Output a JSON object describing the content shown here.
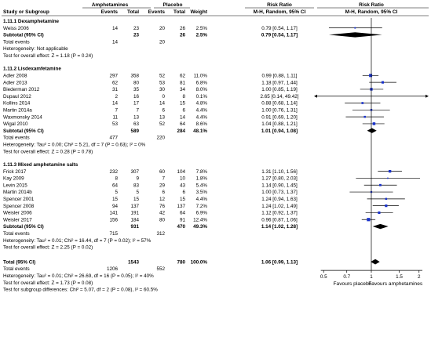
{
  "chart_data": {
    "type": "forest",
    "columns": {
      "group1_title": "Amphetamines",
      "group2_title": "Placebo",
      "effect_title": "Risk Ratio",
      "study": "Study or Subgroup",
      "events1": "Events",
      "total1": "Total",
      "events2": "Events",
      "total2": "Total",
      "weight": "Weight",
      "ci_text": "M-H, Random, 95% CI",
      "plot": "M-H, Random, 95% CI"
    },
    "subgroups": [
      {
        "title": "1.11.1 Dexamphetamine",
        "studies": [
          {
            "name": "Weiss 2006",
            "e1": "14",
            "t1": "23",
            "e2": "20",
            "t2": "26",
            "weight": "2.5%",
            "ci_text": "0.79 [0.54, 1.17]",
            "rr": 0.79,
            "lo": 0.54,
            "hi": 1.17,
            "w": 2.5
          }
        ],
        "subtotal": {
          "label": "Subtotal (95% CI)",
          "t1": "23",
          "t2": "26",
          "weight": "2.5%",
          "ci_text": "0.79 [0.54, 1.17]",
          "rr": 0.79,
          "lo": 0.54,
          "hi": 1.17
        },
        "total_events": {
          "label": "Total events",
          "e1": "14",
          "e2": "20"
        },
        "heterogeneity": "Heterogeneity: Not applicable",
        "overall_test": "Test for overall effect: Z = 1.18 (P = 0.24)"
      },
      {
        "title": "1.11.2 Lisdexamfetamine",
        "studies": [
          {
            "name": "Adler 2008",
            "e1": "297",
            "t1": "358",
            "e2": "52",
            "t2": "62",
            "weight": "11.0%",
            "ci_text": "0.99 [0.88, 1.11]",
            "rr": 0.99,
            "lo": 0.88,
            "hi": 1.11,
            "w": 11.0
          },
          {
            "name": "Adler 2013",
            "e1": "62",
            "t1": "80",
            "e2": "53",
            "t2": "81",
            "weight": "6.8%",
            "ci_text": "1.18 [0.97, 1.44]",
            "rr": 1.18,
            "lo": 0.97,
            "hi": 1.44,
            "w": 6.8
          },
          {
            "name": "Biederman 2012",
            "e1": "31",
            "t1": "35",
            "e2": "30",
            "t2": "34",
            "weight": "8.0%",
            "ci_text": "1.00 [0.85, 1.19]",
            "rr": 1.0,
            "lo": 0.85,
            "hi": 1.19,
            "w": 8.0
          },
          {
            "name": "Dupaul 2012",
            "e1": "2",
            "t1": "16",
            "e2": "0",
            "t2": "8",
            "weight": "0.1%",
            "ci_text": "2.65 [0.14, 49.42]",
            "rr": 2.65,
            "lo": 0.14,
            "hi": 49.42,
            "w": 0.1
          },
          {
            "name": "Kollins 2014",
            "e1": "14",
            "t1": "17",
            "e2": "14",
            "t2": "15",
            "weight": "4.8%",
            "ci_text": "0.88 [0.68, 1.14]",
            "rr": 0.88,
            "lo": 0.68,
            "hi": 1.14,
            "w": 4.8
          },
          {
            "name": "Martin 2014a",
            "e1": "7",
            "t1": "7",
            "e2": "6",
            "t2": "6",
            "weight": "4.4%",
            "ci_text": "1.00 [0.76, 1.31]",
            "rr": 1.0,
            "lo": 0.76,
            "hi": 1.31,
            "w": 4.4
          },
          {
            "name": "Waxmonsky 2014",
            "e1": "11",
            "t1": "13",
            "e2": "13",
            "t2": "14",
            "weight": "4.4%",
            "ci_text": "0.91 [0.69, 1.20]",
            "rr": 0.91,
            "lo": 0.69,
            "hi": 1.2,
            "w": 4.4
          },
          {
            "name": "Wigal 2010",
            "e1": "53",
            "t1": "63",
            "e2": "52",
            "t2": "64",
            "weight": "8.6%",
            "ci_text": "1.04 [0.88, 1.21]",
            "rr": 1.04,
            "lo": 0.88,
            "hi": 1.21,
            "w": 8.6
          }
        ],
        "subtotal": {
          "label": "Subtotal (95% CI)",
          "t1": "589",
          "t2": "284",
          "weight": "48.1%",
          "ci_text": "1.01 [0.94, 1.08]",
          "rr": 1.01,
          "lo": 0.94,
          "hi": 1.08
        },
        "total_events": {
          "label": "Total events",
          "e1": "477",
          "e2": "220"
        },
        "heterogeneity": "Heterogeneity: Tau² = 0.00; Chi² = 5.21, df = 7 (P = 0.63); I² = 0%",
        "overall_test": "Test for overall effect: Z = 0.28 (P = 0.78)"
      },
      {
        "title": "1.11.3 Mixed amphetamine salts",
        "studies": [
          {
            "name": "Frick 2017",
            "e1": "232",
            "t1": "307",
            "e2": "60",
            "t2": "104",
            "weight": "7.8%",
            "ci_text": "1.31 [1.10, 1.56]",
            "rr": 1.31,
            "lo": 1.1,
            "hi": 1.56,
            "w": 7.8
          },
          {
            "name": "Kay 2009",
            "e1": "8",
            "t1": "9",
            "e2": "7",
            "t2": "10",
            "weight": "1.8%",
            "ci_text": "1.27 [0.80, 2.03]",
            "rr": 1.27,
            "lo": 0.8,
            "hi": 2.03,
            "w": 1.8
          },
          {
            "name": "Levin 2015",
            "e1": "64",
            "t1": "83",
            "e2": "29",
            "t2": "43",
            "weight": "5.4%",
            "ci_text": "1.14 [0.90, 1.45]",
            "rr": 1.14,
            "lo": 0.9,
            "hi": 1.45,
            "w": 5.4
          },
          {
            "name": "Martin 2014b",
            "e1": "5",
            "t1": "5",
            "e2": "6",
            "t2": "6",
            "weight": "3.5%",
            "ci_text": "1.00 [0.73, 1.37]",
            "rr": 1.0,
            "lo": 0.73,
            "hi": 1.37,
            "w": 3.5
          },
          {
            "name": "Spencer 2001",
            "e1": "15",
            "t1": "15",
            "e2": "12",
            "t2": "15",
            "weight": "4.4%",
            "ci_text": "1.24 [0.94, 1.63]",
            "rr": 1.24,
            "lo": 0.94,
            "hi": 1.63,
            "w": 4.4
          },
          {
            "name": "Spencer 2008",
            "e1": "94",
            "t1": "137",
            "e2": "76",
            "t2": "137",
            "weight": "7.2%",
            "ci_text": "1.24 [1.02, 1.49]",
            "rr": 1.24,
            "lo": 1.02,
            "hi": 1.49,
            "w": 7.2
          },
          {
            "name": "Weisler 2006",
            "e1": "141",
            "t1": "191",
            "e2": "42",
            "t2": "64",
            "weight": "6.9%",
            "ci_text": "1.12 [0.92, 1.37]",
            "rr": 1.12,
            "lo": 0.92,
            "hi": 1.37,
            "w": 6.9
          },
          {
            "name": "Weisler 2017",
            "e1": "156",
            "t1": "184",
            "e2": "80",
            "t2": "91",
            "weight": "12.4%",
            "ci_text": "0.96 [0.87, 1.06]",
            "rr": 0.96,
            "lo": 0.87,
            "hi": 1.06,
            "w": 12.4
          }
        ],
        "subtotal": {
          "label": "Subtotal (95% CI)",
          "t1": "931",
          "t2": "470",
          "weight": "49.3%",
          "ci_text": "1.14 [1.02, 1.28]",
          "rr": 1.14,
          "lo": 1.02,
          "hi": 1.28
        },
        "total_events": {
          "label": "Total events",
          "e1": "715",
          "e2": "312"
        },
        "heterogeneity": "Heterogeneity: Tau² = 0.01; Chi² = 16.44, df = 7 (P = 0.02); I² = 57%",
        "overall_test": "Test for overall effect: Z = 2.25 (P = 0.02)"
      }
    ],
    "overall": {
      "label": "Total (95% CI)",
      "t1": "1543",
      "t2": "780",
      "weight": "100.0%",
      "ci_text": "1.06 [0.99, 1.13]",
      "rr": 1.06,
      "lo": 0.99,
      "hi": 1.13,
      "total_events": {
        "label": "Total events",
        "e1": "1206",
        "e2": "552"
      },
      "heterogeneity": "Heterogeneity: Tau² = 0.01; Chi² = 26.69, df = 16 (P = 0.05); I² = 40%",
      "overall_test": "Test for overall effect: Z = 1.73 (P = 0.08)",
      "subgroup_test": "Test for subgroup differences: Chi² = 5.07, df = 2 (P = 0.08), I² = 60.5%"
    },
    "x_axis": {
      "scale": "log",
      "range": [
        0.435,
        2.3
      ],
      "ticks": [
        0.5,
        0.7,
        1,
        1.5,
        2
      ],
      "tick_labels": [
        "0.5",
        "0.7",
        "1",
        "1.5",
        "2"
      ],
      "left_label": "Favours placebo",
      "right_label": "Favours amphetamines"
    },
    "colors": {
      "square": "#1a33cc",
      "diamond": "#000000",
      "line": "#000000",
      "text": "#000000"
    }
  }
}
